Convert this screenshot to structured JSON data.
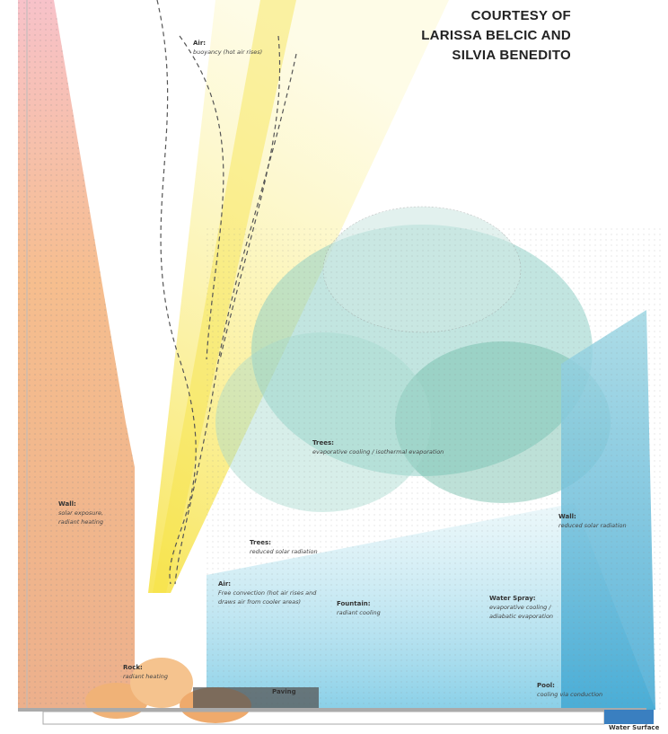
{
  "credit": {
    "lines": [
      "COURTESY OF",
      "LARISSA BELCIC AND",
      "SILVIA BENEDITO"
    ]
  },
  "labels": [
    {
      "title": "Air:",
      "lines": [
        "buoyancy (hot air rises)"
      ]
    },
    {
      "title": "Wall:",
      "lines": [
        "solar exposure,",
        "radiant heating"
      ]
    },
    {
      "title": "Trees:",
      "lines": [
        "evaporative cooling / isothermal evaporation"
      ]
    },
    {
      "title": "Wall:",
      "lines": [
        "reduced solar radiation"
      ]
    },
    {
      "title": "Trees:",
      "lines": [
        "reduced solar radiation"
      ]
    },
    {
      "title": "Air:",
      "lines": [
        "Free convection (hot air rises and",
        "draws air from cooler areas)"
      ]
    },
    {
      "title": "Fountain:",
      "lines": [
        "radiant cooling"
      ]
    },
    {
      "title": "Water Spray:",
      "lines": [
        "evaporative cooling /",
        "adiabatic evaporation"
      ]
    },
    {
      "title": "Rock:",
      "lines": [
        "radiant heating"
      ]
    },
    {
      "title": "Paving",
      "lines": []
    },
    {
      "title": "Pool:",
      "lines": [
        "cooling via conduction"
      ]
    },
    {
      "title": "Water Surface",
      "lines": []
    }
  ]
}
